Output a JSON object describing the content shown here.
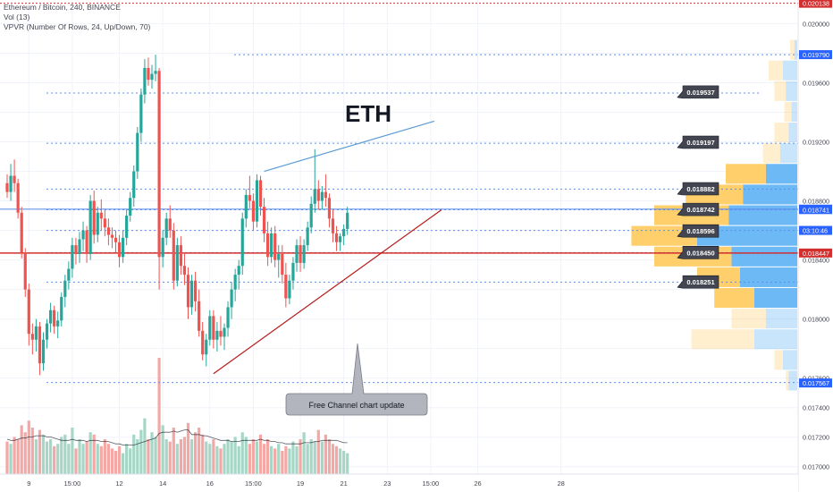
{
  "legend": {
    "symbol": "Ethereum / Bitcoin, 240, BINANCE",
    "vol": "Vol (13)",
    "vpvr": "VPVR (Number Of Rows, 24, Up/Down, 70)"
  },
  "colors": {
    "up": "#26a69a",
    "down": "#ef5350",
    "up_volume": "#a5d6c6",
    "down_volume": "#f4a8a6",
    "vpvr_up": "#64b5f6",
    "vpvr_down": "#ffca5c",
    "level_line": "#5b8def",
    "support_line": "#b71c1c",
    "resistance_line": "#5b9bd5",
    "current_line": "#5b8def",
    "red_level": "#d32f2f"
  },
  "annotations": {
    "title": "ETH",
    "callout": "Free Channel chart update"
  },
  "chart_data": {
    "type": "candlestick",
    "symbol": "ETHBTC",
    "timeframe": "240",
    "exchange": "BINANCE",
    "ylim": [
      0.01695,
      0.02016
    ],
    "y_ticks": [
      "0.020000",
      "0.019600",
      "0.019200",
      "0.018800",
      "0.018400",
      "0.018000",
      "0.017600",
      "0.017400",
      "0.017200",
      "0.017000"
    ],
    "y_tick_values": [
      0.02,
      0.0196,
      0.0192,
      0.0188,
      0.0184,
      0.018,
      0.0176,
      0.0174,
      0.0172,
      0.017
    ],
    "hidden_y_ticks": [
      "0.019800",
      "0.019400",
      "0.019000",
      "0.018600",
      "0.018200",
      "0.017800"
    ],
    "hidden_y_tick_values": [
      0.0198,
      0.0194,
      0.019,
      0.0186,
      0.0182,
      0.0178
    ],
    "x_ticks": [
      "9",
      "15:00",
      "12",
      "14",
      "16",
      "15:00",
      "19",
      "21",
      "23",
      "15:00",
      "26",
      "28"
    ],
    "x_tick_bars": [
      6,
      18,
      31,
      43,
      56,
      68,
      81,
      93,
      105,
      117,
      130,
      153
    ],
    "bars_ohlc": [
      [
        0.01892,
        0.01898,
        0.01882,
        0.01886
      ],
      [
        0.01886,
        0.01905,
        0.0188,
        0.01897
      ],
      [
        0.01897,
        0.01908,
        0.01886,
        0.01892
      ],
      [
        0.01892,
        0.01895,
        0.01868,
        0.01872
      ],
      [
        0.01872,
        0.01876,
        0.01841,
        0.01845
      ],
      [
        0.01845,
        0.01848,
        0.01815,
        0.0182
      ],
      [
        0.0182,
        0.01824,
        0.01782,
        0.0179
      ],
      [
        0.0179,
        0.01797,
        0.01776,
        0.01786
      ],
      [
        0.01786,
        0.018,
        0.01778,
        0.01795
      ],
      [
        0.01795,
        0.01798,
        0.01762,
        0.0177
      ],
      [
        0.0177,
        0.01791,
        0.01765,
        0.01786
      ],
      [
        0.01786,
        0.018,
        0.0178,
        0.01797
      ],
      [
        0.01797,
        0.01811,
        0.01791,
        0.01806
      ],
      [
        0.01806,
        0.01809,
        0.0179,
        0.01795
      ],
      [
        0.01795,
        0.01805,
        0.01787,
        0.01799
      ],
      [
        0.01799,
        0.01818,
        0.01795,
        0.01815
      ],
      [
        0.01815,
        0.0183,
        0.01808,
        0.01826
      ],
      [
        0.01826,
        0.01839,
        0.0182,
        0.01834
      ],
      [
        0.01834,
        0.01855,
        0.01828,
        0.0185
      ],
      [
        0.0185,
        0.01855,
        0.01837,
        0.01844
      ],
      [
        0.01844,
        0.01859,
        0.01838,
        0.01854
      ],
      [
        0.01854,
        0.01866,
        0.01846,
        0.0186
      ],
      [
        0.0186,
        0.01863,
        0.01838,
        0.01844
      ],
      [
        0.01844,
        0.01884,
        0.0184,
        0.0188
      ],
      [
        0.0188,
        0.01887,
        0.01851,
        0.01857
      ],
      [
        0.01857,
        0.01876,
        0.01852,
        0.01872
      ],
      [
        0.01872,
        0.01881,
        0.0186,
        0.01868
      ],
      [
        0.01868,
        0.01874,
        0.01856,
        0.01862
      ],
      [
        0.01862,
        0.01868,
        0.0185,
        0.01857
      ],
      [
        0.01857,
        0.01862,
        0.01848,
        0.01855
      ],
      [
        0.01855,
        0.0186,
        0.01845,
        0.01852
      ],
      [
        0.01852,
        0.01857,
        0.01835,
        0.01842
      ],
      [
        0.01842,
        0.0186,
        0.01838,
        0.01855
      ],
      [
        0.01855,
        0.01874,
        0.0185,
        0.0187
      ],
      [
        0.0187,
        0.01886,
        0.01866,
        0.01882
      ],
      [
        0.01882,
        0.01904,
        0.01876,
        0.019
      ],
      [
        0.019,
        0.0193,
        0.01895,
        0.01926
      ],
      [
        0.01926,
        0.01956,
        0.0192,
        0.01952
      ],
      [
        0.01952,
        0.01976,
        0.01946,
        0.0197
      ],
      [
        0.0197,
        0.01977,
        0.01958,
        0.01962
      ],
      [
        0.01962,
        0.01972,
        0.01956,
        0.01966
      ],
      [
        0.01966,
        0.01979,
        0.01961,
        0.01968
      ],
      [
        0.01968,
        0.0197,
        0.0182,
        0.01842
      ],
      [
        0.01842,
        0.0186,
        0.01835,
        0.01855
      ],
      [
        0.01855,
        0.01872,
        0.0185,
        0.01868
      ],
      [
        0.01868,
        0.01877,
        0.01855,
        0.0186
      ],
      [
        0.0186,
        0.01865,
        0.0182,
        0.01826
      ],
      [
        0.01826,
        0.01855,
        0.01822,
        0.0185
      ],
      [
        0.0185,
        0.01856,
        0.0183,
        0.01836
      ],
      [
        0.01836,
        0.01845,
        0.01823,
        0.0183
      ],
      [
        0.0183,
        0.01835,
        0.018,
        0.01808
      ],
      [
        0.01808,
        0.0183,
        0.01803,
        0.01826
      ],
      [
        0.01826,
        0.01832,
        0.01805,
        0.01812
      ],
      [
        0.01812,
        0.0182,
        0.01788,
        0.01792
      ],
      [
        0.01792,
        0.01798,
        0.01772,
        0.01776
      ],
      [
        0.01776,
        0.0179,
        0.01768,
        0.01786
      ],
      [
        0.01786,
        0.01806,
        0.01782,
        0.01802
      ],
      [
        0.01802,
        0.01806,
        0.0178,
        0.01786
      ],
      [
        0.01786,
        0.01798,
        0.01778,
        0.01792
      ],
      [
        0.01792,
        0.01802,
        0.01782,
        0.01788
      ],
      [
        0.01788,
        0.01797,
        0.01779,
        0.01794
      ],
      [
        0.01794,
        0.01812,
        0.01788,
        0.01808
      ],
      [
        0.01808,
        0.01825,
        0.018,
        0.0182
      ],
      [
        0.0182,
        0.01834,
        0.01812,
        0.0183
      ],
      [
        0.0183,
        0.0184,
        0.0182,
        0.01836
      ],
      [
        0.01836,
        0.01872,
        0.0183,
        0.01868
      ],
      [
        0.01868,
        0.01888,
        0.01862,
        0.01884
      ],
      [
        0.01884,
        0.01897,
        0.01875,
        0.0188
      ],
      [
        0.0188,
        0.01885,
        0.0186,
        0.01866
      ],
      [
        0.01866,
        0.01898,
        0.01862,
        0.01894
      ],
      [
        0.01894,
        0.01897,
        0.0187,
        0.01876
      ],
      [
        0.01876,
        0.01882,
        0.01852,
        0.01858
      ],
      [
        0.01858,
        0.01866,
        0.01836,
        0.01842
      ],
      [
        0.01842,
        0.01862,
        0.01838,
        0.01858
      ],
      [
        0.01858,
        0.01863,
        0.01835,
        0.0184
      ],
      [
        0.0184,
        0.0185,
        0.01828,
        0.01844
      ],
      [
        0.01844,
        0.0185,
        0.01824,
        0.0183
      ],
      [
        0.0183,
        0.01838,
        0.01808,
        0.01814
      ],
      [
        0.01814,
        0.0183,
        0.0181,
        0.01826
      ],
      [
        0.01826,
        0.01842,
        0.0182,
        0.01838
      ],
      [
        0.01838,
        0.01854,
        0.01832,
        0.0185
      ],
      [
        0.0185,
        0.01856,
        0.01832,
        0.01838
      ],
      [
        0.01838,
        0.01854,
        0.01834,
        0.0185
      ],
      [
        0.0185,
        0.01866,
        0.01846,
        0.01862
      ],
      [
        0.01862,
        0.01883,
        0.01858,
        0.01878
      ],
      [
        0.01878,
        0.01915,
        0.01872,
        0.01888
      ],
      [
        0.01888,
        0.01894,
        0.01874,
        0.0188
      ],
      [
        0.0188,
        0.0189,
        0.01874,
        0.01886
      ],
      [
        0.01886,
        0.01898,
        0.01876,
        0.01882
      ],
      [
        0.01882,
        0.01885,
        0.01862,
        0.01868
      ],
      [
        0.01868,
        0.01874,
        0.01852,
        0.01858
      ],
      [
        0.01858,
        0.01863,
        0.01846,
        0.01852
      ],
      [
        0.01852,
        0.01858,
        0.01846,
        0.01856
      ],
      [
        0.01856,
        0.01864,
        0.0185,
        0.01861
      ],
      [
        0.01861,
        0.01876,
        0.01857,
        0.01872
      ]
    ],
    "volume_ylim": [
      0,
      1
    ],
    "volume": [
      0.28,
      0.26,
      0.32,
      0.3,
      0.42,
      0.36,
      0.46,
      0.4,
      0.3,
      0.38,
      0.34,
      0.28,
      0.3,
      0.24,
      0.26,
      0.32,
      0.34,
      0.26,
      0.4,
      0.22,
      0.3,
      0.26,
      0.28,
      0.36,
      0.34,
      0.26,
      0.24,
      0.3,
      0.26,
      0.22,
      0.2,
      0.24,
      0.18,
      0.26,
      0.22,
      0.34,
      0.3,
      0.38,
      0.48,
      0.3,
      0.36,
      0.32,
      1.0,
      0.42,
      0.3,
      0.28,
      0.4,
      0.26,
      0.3,
      0.32,
      0.44,
      0.3,
      0.36,
      0.4,
      0.34,
      0.28,
      0.26,
      0.3,
      0.24,
      0.22,
      0.26,
      0.3,
      0.28,
      0.32,
      0.24,
      0.36,
      0.32,
      0.26,
      0.3,
      0.28,
      0.34,
      0.26,
      0.3,
      0.24,
      0.22,
      0.26,
      0.2,
      0.24,
      0.22,
      0.28,
      0.24,
      0.3,
      0.36,
      0.26,
      0.3,
      0.28,
      0.38,
      0.28,
      0.34,
      0.3,
      0.26,
      0.24,
      0.22,
      0.2,
      0.18
    ],
    "volume_ma": [
      0.3,
      0.29,
      0.29,
      0.3,
      0.31,
      0.31,
      0.32,
      0.32,
      0.33,
      0.33,
      0.33,
      0.32,
      0.32,
      0.31,
      0.3,
      0.29,
      0.29,
      0.29,
      0.3,
      0.29,
      0.29,
      0.29,
      0.28,
      0.29,
      0.29,
      0.29,
      0.28,
      0.28,
      0.28,
      0.27,
      0.26,
      0.26,
      0.25,
      0.25,
      0.25,
      0.25,
      0.26,
      0.27,
      0.28,
      0.29,
      0.3,
      0.31,
      0.35,
      0.36,
      0.36,
      0.36,
      0.37,
      0.36,
      0.37,
      0.38,
      0.38,
      0.34,
      0.34,
      0.34,
      0.33,
      0.33,
      0.32,
      0.31,
      0.3,
      0.29,
      0.29,
      0.29,
      0.28,
      0.28,
      0.28,
      0.29,
      0.29,
      0.29,
      0.29,
      0.29,
      0.3,
      0.29,
      0.29,
      0.28,
      0.28,
      0.27,
      0.27,
      0.26,
      0.26,
      0.26,
      0.26,
      0.26,
      0.27,
      0.27,
      0.27,
      0.28,
      0.28,
      0.29,
      0.29,
      0.29,
      0.29,
      0.29,
      0.28,
      0.27,
      0.27
    ],
    "vpvr": {
      "row_ranges": [
        [
          0.01975,
          0.01989
        ],
        [
          0.01961,
          0.01975
        ],
        [
          0.01947,
          0.01961
        ],
        [
          0.01933,
          0.01947
        ],
        [
          0.01919,
          0.01933
        ],
        [
          0.01905,
          0.01919
        ],
        [
          0.01891,
          0.01905
        ],
        [
          0.01877,
          0.01891
        ],
        [
          0.01863,
          0.01877
        ],
        [
          0.01849,
          0.01863
        ],
        [
          0.01835,
          0.01849
        ],
        [
          0.01821,
          0.01835
        ],
        [
          0.01807,
          0.01821
        ],
        [
          0.01793,
          0.01807
        ],
        [
          0.01779,
          0.01793
        ],
        [
          0.01765,
          0.01779
        ],
        [
          0.01751,
          0.01765
        ]
      ],
      "up": [
        0.02,
        0.1,
        0.08,
        0.04,
        0.06,
        0.12,
        0.22,
        0.38,
        0.48,
        0.7,
        0.46,
        0.4,
        0.3,
        0.22,
        0.3,
        0.1,
        0.06
      ],
      "down": [
        0.03,
        0.1,
        0.08,
        0.05,
        0.1,
        0.12,
        0.28,
        0.4,
        0.52,
        0.46,
        0.54,
        0.3,
        0.28,
        0.24,
        0.44,
        0.06,
        0.02
      ],
      "point_of_control": 0.01842
    },
    "levels": [
      0.01979,
      0.01953,
      0.01919,
      0.01888,
      0.01874,
      0.0186,
      0.01845,
      0.01825,
      0.01757
    ],
    "level_labels": [
      "0.019537",
      "0.019197",
      "0.018882",
      "0.018742",
      "0.018596",
      "0.018450",
      "0.018251"
    ],
    "level_label_values": [
      0.019537,
      0.019197,
      0.018882,
      0.018742,
      0.018596,
      0.01845,
      0.018251
    ],
    "price_markers": [
      {
        "text": "0.020138",
        "value": 0.020138,
        "kind": "red"
      },
      {
        "text": "0.019790",
        "value": 0.01979,
        "kind": "blue"
      },
      {
        "text": "0.018744",
        "value": 0.018744,
        "kind": "blue"
      },
      {
        "text": "0.018741",
        "value": 0.018741,
        "kind": "blue"
      },
      {
        "text": "03:10:46",
        "value": 0.0186,
        "kind": "blue"
      },
      {
        "text": "0.018447",
        "value": 0.018447,
        "kind": "red"
      },
      {
        "text": "0.017567",
        "value": 0.017567,
        "kind": "blue"
      }
    ],
    "red_levels": [
      0.020138,
      0.018447
    ],
    "current_level": 0.018744,
    "support_line": [
      [
        57,
        0.01763
      ],
      [
        120,
        0.01874
      ]
    ],
    "resistance_line": [
      [
        71,
        0.019
      ],
      [
        118,
        0.01934
      ]
    ]
  }
}
